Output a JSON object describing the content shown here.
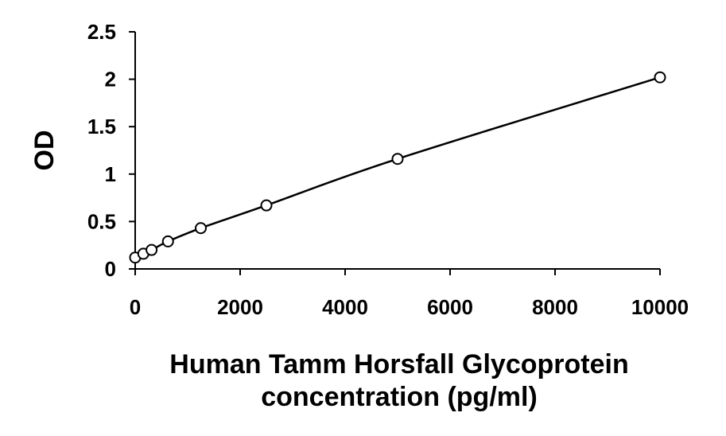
{
  "chart_data": {
    "type": "scatter",
    "title": "",
    "xlabel_lines": [
      "Human Tamm Horsfall Glycoprotein",
      "concentration (pg/ml)"
    ],
    "ylabel": "OD",
    "xlim": [
      0,
      10000
    ],
    "ylim": [
      0,
      2.5
    ],
    "xticks": [
      0,
      2000,
      4000,
      6000,
      8000,
      10000
    ],
    "yticks": [
      0,
      0.5,
      1,
      1.5,
      2,
      2.5
    ],
    "ytick_labels": [
      "0",
      "0.5",
      "1",
      "1.5",
      "2",
      "2.5"
    ],
    "grid": false,
    "legend": "none",
    "trendline": "smooth fit through standards",
    "series": [
      {
        "marker": "open-circle",
        "x": [
          0,
          156,
          312,
          625,
          1250,
          2500,
          5000,
          10000
        ],
        "y": [
          0.12,
          0.16,
          0.2,
          0.29,
          0.43,
          0.67,
          1.16,
          2.02
        ]
      }
    ]
  }
}
